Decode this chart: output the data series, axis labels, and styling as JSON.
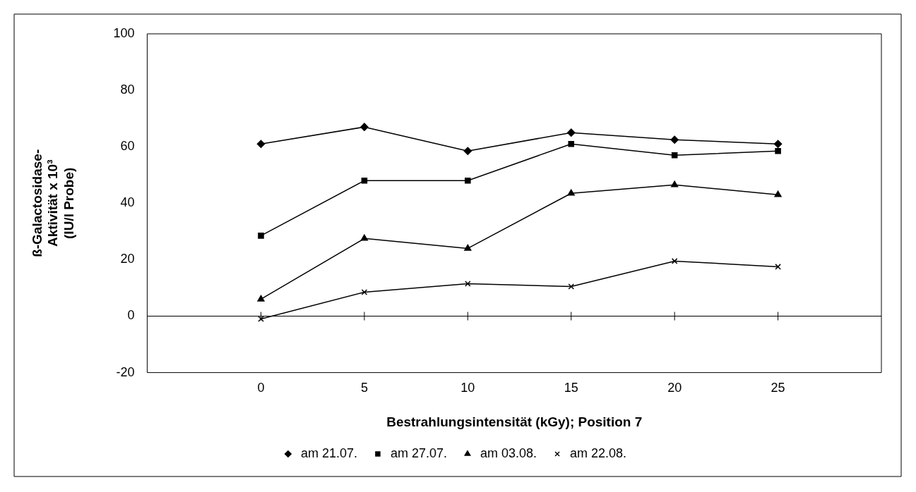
{
  "chart_data": {
    "type": "line",
    "xlabel": "Bestrahlungsintensität (kGy); Position 7",
    "ylabel": "ß-Galactosidase-\nAktivität x 10³\n(IU/l Probe)",
    "x": [
      0,
      5,
      10,
      15,
      20,
      25
    ],
    "xlim": [
      -5.5,
      30
    ],
    "xticks": [
      0,
      5,
      10,
      15,
      20,
      25
    ],
    "ylim": [
      -20,
      100
    ],
    "yticks": [
      -20,
      0,
      20,
      40,
      60,
      80,
      100
    ],
    "grid": false,
    "legend": "bottom",
    "ref_lines": [
      {
        "axis": "y",
        "value": 0
      }
    ],
    "series": [
      {
        "name": "am 21.07.",
        "color": "#000000",
        "marker": "diamond",
        "values": [
          61,
          67,
          58.5,
          65,
          62.5,
          61
        ]
      },
      {
        "name": "am 27.07.",
        "color": "#000000",
        "marker": "square",
        "values": [
          28.5,
          48,
          48,
          61,
          57,
          58.5
        ]
      },
      {
        "name": "am 03.08.",
        "color": "#000000",
        "marker": "triangle",
        "values": [
          6,
          27.5,
          24,
          43.5,
          46.5,
          43
        ]
      },
      {
        "name": "am 22.08.",
        "color": "#000000",
        "marker": "cross",
        "values": [
          -1,
          8.5,
          11.5,
          10.5,
          19.5,
          17.5
        ]
      }
    ]
  }
}
